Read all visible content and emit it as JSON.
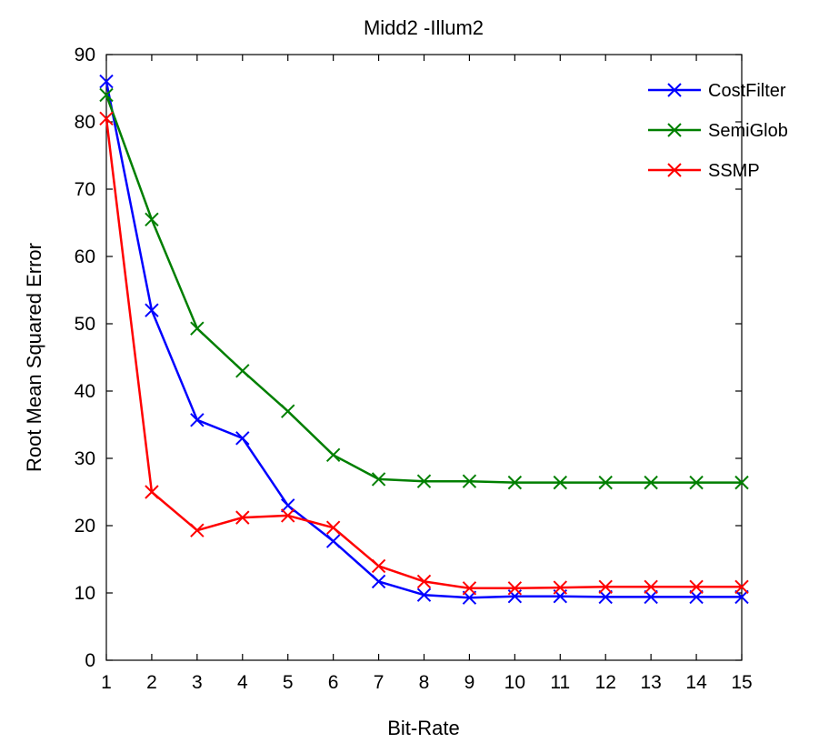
{
  "chart_data": {
    "type": "line",
    "title": "Midd2 -Illum2",
    "xlabel": "Bit-Rate",
    "ylabel": "Root Mean Squared Error",
    "x": [
      1,
      2,
      3,
      4,
      5,
      6,
      7,
      8,
      9,
      10,
      11,
      12,
      13,
      14,
      15
    ],
    "xlim": [
      1,
      15
    ],
    "ylim": [
      0,
      90
    ],
    "xticks": [
      "1",
      "2",
      "3",
      "4",
      "5",
      "6",
      "7",
      "8",
      "9",
      "10",
      "11",
      "12",
      "13",
      "14",
      "15"
    ],
    "yticks": [
      "0",
      "10",
      "20",
      "30",
      "40",
      "50",
      "60",
      "70",
      "80",
      "90"
    ],
    "grid": false,
    "legend_position": "top-right",
    "marker": "x",
    "series": [
      {
        "name": "CostFilter",
        "color": "#0000ff",
        "values": [
          86.0,
          52.0,
          35.7,
          33.0,
          23.0,
          17.7,
          11.7,
          9.7,
          9.3,
          9.5,
          9.5,
          9.4,
          9.4,
          9.4,
          9.4
        ]
      },
      {
        "name": "SemiGlob",
        "color": "#007f00",
        "values": [
          84.0,
          65.5,
          49.3,
          43.0,
          37.0,
          30.5,
          26.9,
          26.6,
          26.6,
          26.4,
          26.4,
          26.4,
          26.4,
          26.4,
          26.4
        ]
      },
      {
        "name": "SSMP",
        "color": "#ff0000",
        "values": [
          80.5,
          25.0,
          19.3,
          21.2,
          21.5,
          19.7,
          14.0,
          11.7,
          10.7,
          10.7,
          10.8,
          10.9,
          10.9,
          10.9,
          10.9
        ]
      }
    ]
  }
}
